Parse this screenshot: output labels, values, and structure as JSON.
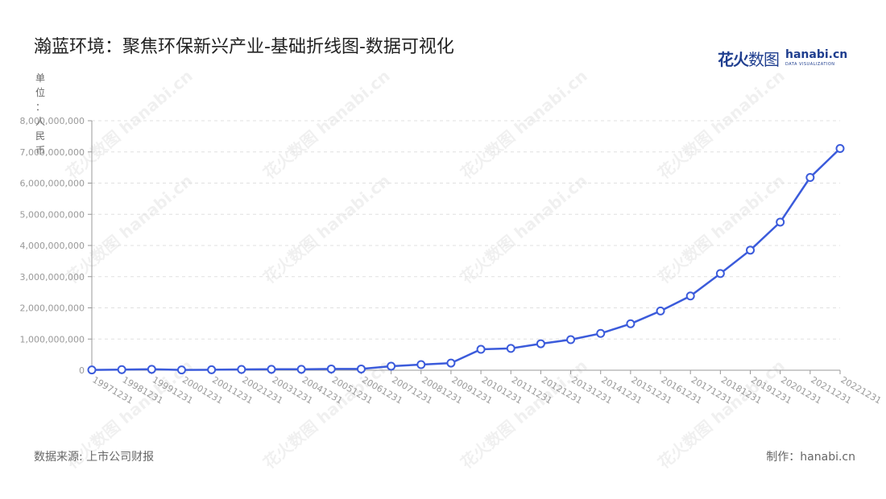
{
  "title": "瀚蓝环境：聚焦环保新兴产业-基础折线图-数据可视化",
  "logo": {
    "cn_main": "花火",
    "cn_sub": "数图",
    "en": "hanabi.cn",
    "tagline": "DATA VISUALIZATION"
  },
  "unit_label": [
    "单",
    "位",
    "：",
    "人",
    "民",
    "币"
  ],
  "footer": {
    "source": "数据来源: 上市公司财报",
    "credit": "制作：hanabi.cn"
  },
  "watermark_text": "花火数图 hanabi.cn",
  "colors": {
    "line": "#3b5bdb",
    "grid": "#e0e0e0",
    "axis_text": "#999999"
  },
  "chart_data": {
    "type": "line",
    "title": "瀚蓝环境：聚焦环保新兴产业-基础折线图-数据可视化",
    "ylabel": "单位：人民币",
    "ylim": [
      0,
      8000000000
    ],
    "yticks": [
      0,
      1000000000,
      2000000000,
      3000000000,
      4000000000,
      5000000000,
      6000000000,
      7000000000,
      8000000000
    ],
    "ytick_labels": [
      "0",
      "1,000,000,000",
      "2,000,000,000",
      "3,000,000,000",
      "4,000,000,000",
      "5,000,000,000",
      "6,000,000,000",
      "7,000,000,000",
      "8,000,000,000"
    ],
    "grid": true,
    "categories": [
      "19971231",
      "19981231",
      "19991231",
      "20001231",
      "20011231",
      "20021231",
      "20031231",
      "20041231",
      "20051231",
      "20061231",
      "20071231",
      "20081231",
      "20091231",
      "20101231",
      "20111231",
      "20121231",
      "20131231",
      "20141231",
      "20151231",
      "20161231",
      "20171231",
      "20181231",
      "20191231",
      "20201231",
      "20211231",
      "20221231"
    ],
    "values": [
      10000000,
      20000000,
      30000000,
      10000000,
      15000000,
      25000000,
      30000000,
      30000000,
      40000000,
      40000000,
      130000000,
      180000000,
      230000000,
      670000000,
      700000000,
      850000000,
      980000000,
      1180000000,
      1490000000,
      1900000000,
      2380000000,
      3100000000,
      3850000000,
      4750000000,
      6180000000,
      7110000000
    ]
  }
}
